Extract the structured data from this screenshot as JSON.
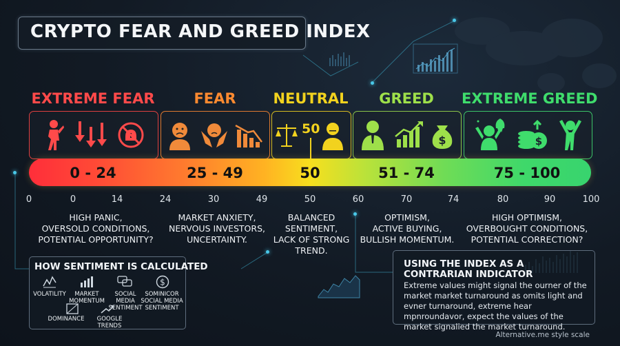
{
  "title": "CRYPTO FEAR AND GREED INDEX",
  "zones": [
    {
      "label": "EXTREME FEAR",
      "color": "#ff4a4a",
      "range": "0 - 24",
      "description": "HIGH PANIC,\nOVERSOLD CONDITIONS,\nPOTENTIAL OPPORTUNITY?"
    },
    {
      "label": "FEAR",
      "color": "#ff8a30",
      "range": "25 - 49",
      "description": "MARKET ANXIETY,\nNERVOUS INVESTORS,\nUNCERTAINTY."
    },
    {
      "label": "NEUTRAL",
      "color": "#f2d21e",
      "range": "50",
      "description": "BALANCED\nSENTIMENT,\nLACK OF STRONG\nTREND.",
      "marker": "50"
    },
    {
      "label": "GREED",
      "color": "#9ee04a",
      "range": "51 - 74",
      "description": "OPTIMISM,\nACTIVE BUYING,\nBULLISH MOMENTUM."
    },
    {
      "label": "EXTREME GREED",
      "color": "#3fdc6c",
      "range": "75 - 100",
      "description": "HIGH OPTIMISM,\nOVERBOUGHT CONDITIONS,\nPOTENTIAL CORRECTION?"
    }
  ],
  "ticks": [
    "0",
    "0",
    "14",
    "24",
    "30",
    "49",
    "50",
    "60",
    "70",
    "74",
    "80",
    "90",
    "100"
  ],
  "calculated": {
    "title": "HOW SENTIMENT IS CALCULATED",
    "factors": [
      "VOLATILITY",
      "MARKET\nMOMENTUM",
      "SOCIAL MEDIA\nSENTIMENT",
      "SOMINICOR\nSOCIAL MEDIA\nSENTIMENT",
      "DOMINANCE",
      "GOOGLE TRENDS"
    ]
  },
  "contrarian": {
    "title_line1": "USING THE INDEX AS A",
    "title_line2": "CONTRARIAN INDICATOR",
    "text": "Extreme values might signal the ourner of the market market turnaround as omits light and evner turnaround, extreme hear mpnroundavor, expect the values of the market signalied the market turnaround."
  },
  "footer": "Alternative.me style scale"
}
